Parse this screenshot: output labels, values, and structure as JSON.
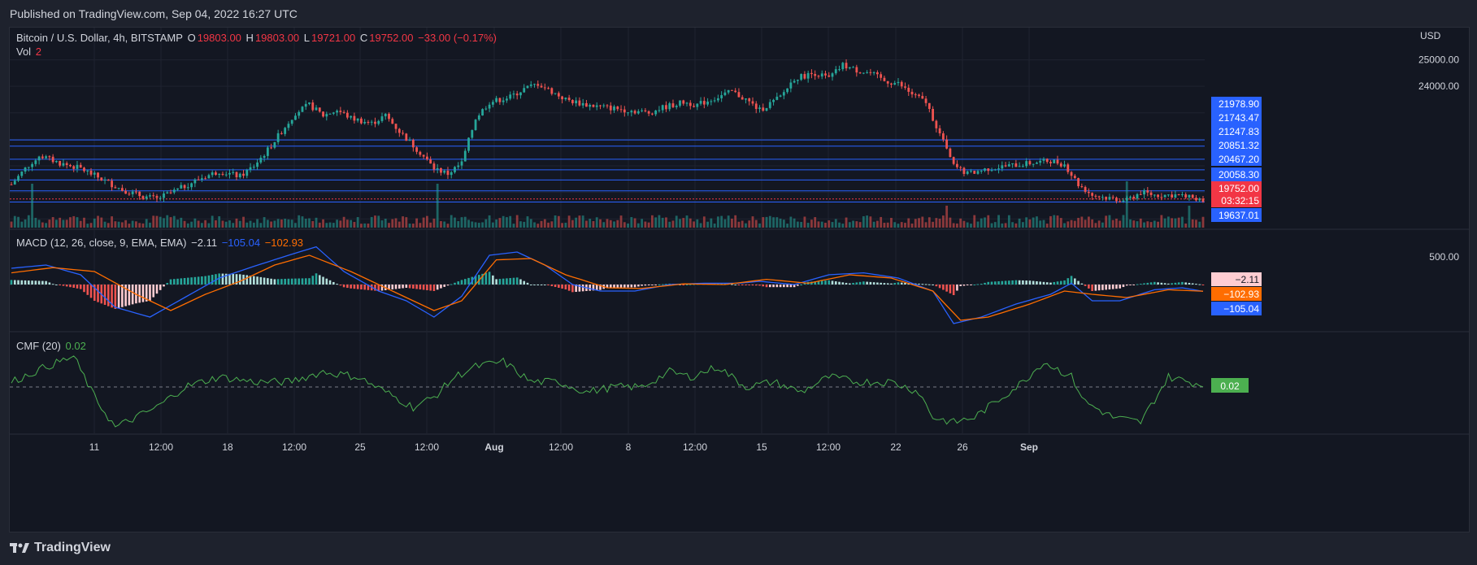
{
  "header": {
    "published": "Published on TradingView.com, Sep 04, 2022 16:27 UTC"
  },
  "footer": {
    "brand": "TradingView"
  },
  "legend": {
    "symbol": "Bitcoin / U.S. Dollar, 4h, BITSTAMP",
    "o_label": "O",
    "o_value": "19803.00",
    "h_label": "H",
    "h_value": "19803.00",
    "l_label": "L",
    "l_value": "19721.00",
    "c_label": "C",
    "c_value": "19752.00",
    "change": "−33.00 (−0.17%)",
    "vol_label": "Vol",
    "vol_value": "2",
    "macd_label": "MACD (12, 26, close, 9, EMA, EMA)",
    "macd_hist": "−2.11",
    "macd_line": "−105.04",
    "macd_signal": "−102.93",
    "cmf_label": "CMF (20)",
    "cmf_value": "0.02"
  },
  "colors": {
    "up": "#26a69a",
    "down": "#ef5350",
    "level_line": "#2962ff",
    "macd_line": "#2962ff",
    "signal_line": "#ff6d00",
    "cmf_line": "#4caf50",
    "price_tag": "#f23645",
    "level_tag": "#2962ff"
  },
  "chart_data": {
    "type": "candlestick",
    "title": "Bitcoin / U.S. Dollar, 4h, BITSTAMP",
    "ylabel": "USD",
    "price_axis_ticks": [
      "25000.00",
      "24000.00"
    ],
    "price_range": [
      18700,
      25600
    ],
    "x_tick_labels": [
      "11",
      "12:00",
      "18",
      "12:00",
      "25",
      "12:00",
      "Aug",
      "12:00",
      "8",
      "12:00",
      "15",
      "12:00",
      "22",
      "26",
      "Sep"
    ],
    "level_lines": [
      {
        "value": 21978.9,
        "label": "21978.90"
      },
      {
        "value": 21743.47,
        "label": "21743.47"
      },
      {
        "value": 21247.83,
        "label": "21247.83"
      },
      {
        "value": 20851.32,
        "label": "20851.32"
      },
      {
        "value": 20467.2,
        "label": "20467.20"
      },
      {
        "value": 20058.3,
        "label": "20058.30"
      },
      {
        "value": 19637.01,
        "label": "19637.01"
      }
    ],
    "last_price": {
      "value": 19752.0,
      "label": "19752.00",
      "countdown": "03:32:15"
    },
    "price_path": [
      [
        0,
        20300
      ],
      [
        4,
        20900
      ],
      [
        8,
        21400
      ],
      [
        14,
        21100
      ],
      [
        20,
        20900
      ],
      [
        26,
        20500
      ],
      [
        32,
        20100
      ],
      [
        38,
        19850
      ],
      [
        42,
        19750
      ],
      [
        48,
        20100
      ],
      [
        54,
        20500
      ],
      [
        60,
        20800
      ],
      [
        66,
        20600
      ],
      [
        70,
        21000
      ],
      [
        74,
        21600
      ],
      [
        78,
        22300
      ],
      [
        82,
        23000
      ],
      [
        86,
        23300
      ],
      [
        90,
        22900
      ],
      [
        94,
        23100
      ],
      [
        98,
        22800
      ],
      [
        104,
        22600
      ],
      [
        108,
        22900
      ],
      [
        112,
        22300
      ],
      [
        118,
        21500
      ],
      [
        122,
        20900
      ],
      [
        126,
        20700
      ],
      [
        130,
        21100
      ],
      [
        134,
        22800
      ],
      [
        138,
        23400
      ],
      [
        144,
        23600
      ],
      [
        148,
        23900
      ],
      [
        152,
        24100
      ],
      [
        156,
        23800
      ],
      [
        160,
        23500
      ],
      [
        166,
        23300
      ],
      [
        172,
        23200
      ],
      [
        178,
        23100
      ],
      [
        184,
        23000
      ],
      [
        188,
        23200
      ],
      [
        194,
        23400
      ],
      [
        198,
        23300
      ],
      [
        202,
        23500
      ],
      [
        208,
        23800
      ],
      [
        212,
        23500
      ],
      [
        216,
        23100
      ],
      [
        222,
        23600
      ],
      [
        226,
        24300
      ],
      [
        232,
        24500
      ],
      [
        236,
        24300
      ],
      [
        240,
        24800
      ],
      [
        244,
        24600
      ],
      [
        248,
        24500
      ],
      [
        252,
        24200
      ],
      [
        256,
        24100
      ],
      [
        260,
        23700
      ],
      [
        264,
        23400
      ],
      [
        268,
        22200
      ],
      [
        272,
        21000
      ],
      [
        276,
        20700
      ],
      [
        282,
        20900
      ],
      [
        288,
        21000
      ],
      [
        294,
        21100
      ],
      [
        300,
        21200
      ],
      [
        304,
        21050
      ],
      [
        308,
        20300
      ],
      [
        312,
        19900
      ],
      [
        316,
        19800
      ],
      [
        322,
        19700
      ],
      [
        326,
        20000
      ],
      [
        330,
        19900
      ],
      [
        336,
        19900
      ],
      [
        340,
        19800
      ],
      [
        344,
        19750
      ]
    ],
    "volume_spikes": [
      [
        6,
        0.9
      ],
      [
        123,
        0.9
      ],
      [
        270,
        0.45
      ],
      [
        322,
        0.95
      ],
      [
        340,
        0.45
      ]
    ],
    "macd": {
      "hist_label": "−2.11",
      "macd_label": "−105.04",
      "signal_label": "−102.93",
      "axis_tick": "500.00",
      "macd_path": [
        [
          0,
          250
        ],
        [
          10,
          300
        ],
        [
          20,
          150
        ],
        [
          30,
          -350
        ],
        [
          40,
          -500
        ],
        [
          50,
          -200
        ],
        [
          60,
          100
        ],
        [
          70,
          280
        ],
        [
          80,
          450
        ],
        [
          88,
          580
        ],
        [
          96,
          200
        ],
        [
          106,
          -100
        ],
        [
          114,
          -250
        ],
        [
          122,
          -500
        ],
        [
          130,
          -180
        ],
        [
          138,
          450
        ],
        [
          146,
          500
        ],
        [
          154,
          300
        ],
        [
          162,
          0
        ],
        [
          170,
          -100
        ],
        [
          180,
          -100
        ],
        [
          190,
          0
        ],
        [
          200,
          20
        ],
        [
          210,
          20
        ],
        [
          216,
          50
        ],
        [
          226,
          0
        ],
        [
          236,
          150
        ],
        [
          246,
          180
        ],
        [
          256,
          100
        ],
        [
          266,
          -100
        ],
        [
          272,
          -600
        ],
        [
          280,
          -500
        ],
        [
          290,
          -300
        ],
        [
          300,
          -150
        ],
        [
          306,
          20
        ],
        [
          312,
          -250
        ],
        [
          320,
          -250
        ],
        [
          330,
          -80
        ],
        [
          338,
          -50
        ],
        [
          344,
          -105
        ]
      ],
      "signal_path": [
        [
          0,
          180
        ],
        [
          12,
          260
        ],
        [
          24,
          200
        ],
        [
          36,
          -150
        ],
        [
          46,
          -400
        ],
        [
          56,
          -150
        ],
        [
          66,
          50
        ],
        [
          76,
          300
        ],
        [
          86,
          450
        ],
        [
          98,
          200
        ],
        [
          110,
          -100
        ],
        [
          122,
          -400
        ],
        [
          130,
          -250
        ],
        [
          140,
          380
        ],
        [
          150,
          400
        ],
        [
          160,
          150
        ],
        [
          172,
          -50
        ],
        [
          182,
          -60
        ],
        [
          194,
          10
        ],
        [
          206,
          0
        ],
        [
          218,
          80
        ],
        [
          230,
          20
        ],
        [
          242,
          150
        ],
        [
          254,
          100
        ],
        [
          266,
          -100
        ],
        [
          274,
          -550
        ],
        [
          282,
          -500
        ],
        [
          294,
          -300
        ],
        [
          304,
          -100
        ],
        [
          312,
          -150
        ],
        [
          322,
          -200
        ],
        [
          334,
          -80
        ],
        [
          344,
          -103
        ]
      ]
    },
    "cmf": {
      "value_label": "0.02",
      "path": [
        [
          0,
          0.05
        ],
        [
          10,
          0.2
        ],
        [
          18,
          0.3
        ],
        [
          24,
          -0.1
        ],
        [
          30,
          -0.4
        ],
        [
          36,
          -0.3
        ],
        [
          42,
          -0.2
        ],
        [
          50,
          0
        ],
        [
          60,
          0.1
        ],
        [
          70,
          0.05
        ],
        [
          80,
          0.05
        ],
        [
          90,
          0.15
        ],
        [
          100,
          0.1
        ],
        [
          108,
          -0.05
        ],
        [
          116,
          -0.2
        ],
        [
          122,
          -0.1
        ],
        [
          128,
          0.1
        ],
        [
          134,
          0.2
        ],
        [
          142,
          0.25
        ],
        [
          150,
          0.05
        ],
        [
          158,
          0.05
        ],
        [
          166,
          -0.05
        ],
        [
          174,
          0
        ],
        [
          182,
          0
        ],
        [
          190,
          0.15
        ],
        [
          196,
          0.1
        ],
        [
          204,
          0.2
        ],
        [
          212,
          0
        ],
        [
          220,
          0.05
        ],
        [
          228,
          -0.05
        ],
        [
          236,
          0.1
        ],
        [
          244,
          0.05
        ],
        [
          254,
          0.05
        ],
        [
          262,
          -0.05
        ],
        [
          266,
          -0.3
        ],
        [
          272,
          -0.35
        ],
        [
          278,
          -0.3
        ],
        [
          286,
          -0.1
        ],
        [
          292,
          0.05
        ],
        [
          298,
          0.25
        ],
        [
          306,
          0.1
        ],
        [
          310,
          -0.15
        ],
        [
          318,
          -0.3
        ],
        [
          326,
          -0.35
        ],
        [
          334,
          0.1
        ],
        [
          340,
          0.05
        ],
        [
          344,
          0.02
        ]
      ]
    }
  }
}
